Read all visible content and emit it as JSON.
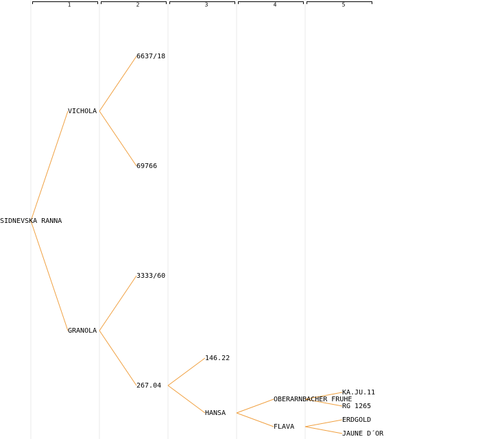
{
  "columns": [
    "1",
    "2",
    "3",
    "4",
    "5"
  ],
  "tree": {
    "label": "SIDNEVSKA RANNA",
    "children": [
      {
        "label": "VICHOLA",
        "color": "#0000c0",
        "children": [
          {
            "label": "6637/18"
          },
          {
            "label": "69766"
          }
        ]
      },
      {
        "label": "GRANOLA",
        "children": [
          {
            "label": "3333/60"
          },
          {
            "label": "267.04",
            "children": [
              {
                "label": "146.22"
              },
              {
                "label": "HANSA",
                "children": [
                  {
                    "label": "OBERARNBACHER FRUHE",
                    "children": [
                      {
                        "label": "KA.JU.11"
                      },
                      {
                        "label": "RG 1265"
                      }
                    ]
                  },
                  {
                    "label": "FLAVA",
                    "children": [
                      {
                        "label": "ERDGOLD"
                      },
                      {
                        "label": "JAUNE D´OR"
                      }
                    ]
                  }
                ]
              }
            ]
          }
        ]
      }
    ]
  }
}
